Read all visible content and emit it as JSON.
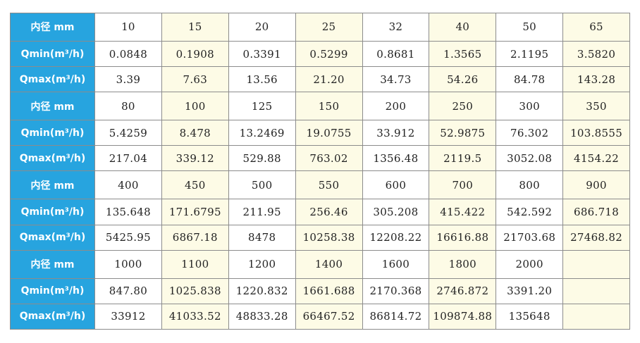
{
  "table": {
    "rows": [
      {
        "label": "内径 mm",
        "cells": [
          "10",
          "15",
          "20",
          "25",
          "32",
          "40",
          "50",
          "65"
        ]
      },
      {
        "label": "Qmin(m³/h)",
        "cells": [
          "0.0848",
          "0.1908",
          "0.3391",
          "0.5299",
          "0.8681",
          "1.3565",
          "2.1195",
          "3.5820"
        ]
      },
      {
        "label": "Qmax(m³/h)",
        "cells": [
          "3.39",
          "7.63",
          "13.56",
          "21.20",
          "34.73",
          "54.26",
          "84.78",
          "143.28"
        ]
      },
      {
        "label": "内径 mm",
        "cells": [
          "80",
          "100",
          "125",
          "150",
          "200",
          "250",
          "300",
          "350"
        ]
      },
      {
        "label": "Qmin(m³/h)",
        "cells": [
          "5.4259",
          "8.478",
          "13.2469",
          "19.0755",
          "33.912",
          "52.9875",
          "76.302",
          "103.8555"
        ]
      },
      {
        "label": "Qmax(m³/h)",
        "cells": [
          "217.04",
          "339.12",
          "529.88",
          "763.02",
          "1356.48",
          "2119.5",
          "3052.08",
          "4154.22"
        ]
      },
      {
        "label": "内径 mm",
        "cells": [
          "400",
          "450",
          "500",
          "550",
          "600",
          "700",
          "800",
          "900"
        ]
      },
      {
        "label": "Qmin(m³/h)",
        "cells": [
          "135.648",
          "171.6795",
          "211.95",
          "256.46",
          "305.208",
          "415.422",
          "542.592",
          "686.718"
        ]
      },
      {
        "label": "Qmax(m³/h)",
        "cells": [
          "5425.95",
          "6867.18",
          "8478",
          "10258.38",
          "12208.22",
          "16616.88",
          "21703.68",
          "27468.82"
        ]
      },
      {
        "label": "内径 mm",
        "cells": [
          "1000",
          "1100",
          "1200",
          "1400",
          "1600",
          "1800",
          "2000",
          ""
        ]
      },
      {
        "label": "Qmin(m³/h)",
        "cells": [
          "847.80",
          "1025.838",
          "1220.832",
          "1661.688",
          "2170.368",
          "2746.872",
          "3391.20",
          ""
        ]
      },
      {
        "label": "Qmax(m³/h)",
        "cells": [
          "33912",
          "41033.52",
          "48833.28",
          "66467.52",
          "86814.72",
          "109874.88",
          "135648",
          ""
        ]
      }
    ]
  },
  "colors": {
    "header_bg": "#27a4df",
    "header_text": "#ffffff",
    "band_light": "#ffffff",
    "band_cream": "#fdfbe6",
    "border": "#8c8c8c"
  }
}
